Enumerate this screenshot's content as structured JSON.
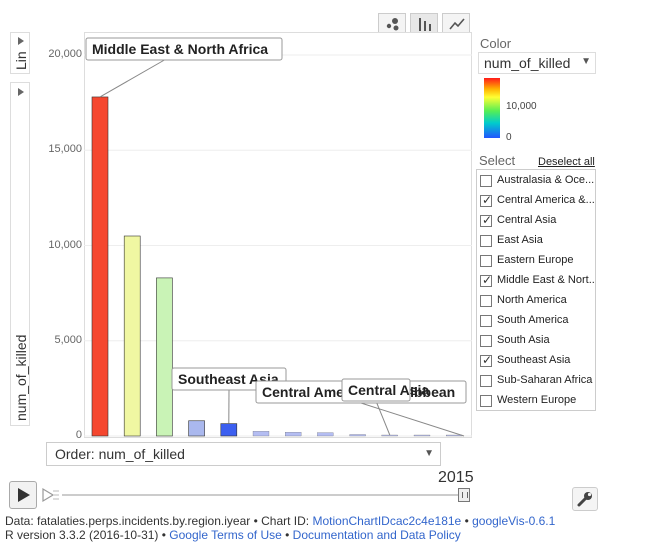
{
  "x_axis_control": {
    "label": "Lin"
  },
  "y_axis_control": {
    "label": "num_of_killed"
  },
  "color_panel": {
    "title": "Color",
    "selected": "num_of_killed",
    "scale_max_label": "10,000",
    "scale_min_label": "0"
  },
  "select_panel": {
    "title": "Select",
    "deselect_label": "Deselect all",
    "items": [
      {
        "label": "Australasia & Oce...",
        "checked": false
      },
      {
        "label": "Central America &...",
        "checked": true
      },
      {
        "label": "Central Asia",
        "checked": true
      },
      {
        "label": "East Asia",
        "checked": false
      },
      {
        "label": "Eastern Europe",
        "checked": false
      },
      {
        "label": "Middle East & Nort...",
        "checked": true
      },
      {
        "label": "North America",
        "checked": false
      },
      {
        "label": "South America",
        "checked": false
      },
      {
        "label": "South Asia",
        "checked": false
      },
      {
        "label": "Southeast Asia",
        "checked": true
      },
      {
        "label": "Sub-Saharan Africa",
        "checked": false
      },
      {
        "label": "Western Europe",
        "checked": false
      }
    ]
  },
  "order_control": {
    "label": "Order: num_of_killed"
  },
  "player": {
    "year": "2015"
  },
  "footer": {
    "line1_prefix": "Data: fatalaties.perps.incidents.by.region.iyear • Chart ID: ",
    "chart_id": "MotionChartIDcac2c4e181e",
    "sep1": " • ",
    "googlevis": "googleVis-0.6.1",
    "line2_prefix": "R version 3.3.2 (2016-10-31) • ",
    "terms": "Google Terms of Use",
    "sep2": " • ",
    "policy": "Documentation and Data Policy"
  },
  "chart_data": {
    "type": "bar",
    "ylim": [
      0,
      21000
    ],
    "yticks": [
      0,
      5000,
      10000,
      15000,
      20000
    ],
    "ytick_labels": [
      "0",
      "5,000",
      "10,000",
      "15,000",
      "20,000"
    ],
    "values": [
      17800,
      10500,
      8300,
      800,
      650,
      250,
      200,
      180,
      80,
      40,
      25,
      10
    ],
    "colors": [
      "#f5472f",
      "#f0f7a2",
      "#c9f3b6",
      "#aab8ee",
      "#3c5ff0",
      "#b4bdf2",
      "#b4bdf2",
      "#b4bdf2",
      "#b8c0f2",
      "#c0c6f2",
      "#c0c6f2",
      "#c0c6f2"
    ],
    "annotations": [
      {
        "label": "Middle East & North Africa",
        "bar": 0
      },
      {
        "label": "Southeast Asia",
        "bar": 4
      },
      {
        "label": "Central America & Caribbean",
        "bar": 10
      },
      {
        "label": "Central Asia",
        "bar": 9
      }
    ]
  }
}
